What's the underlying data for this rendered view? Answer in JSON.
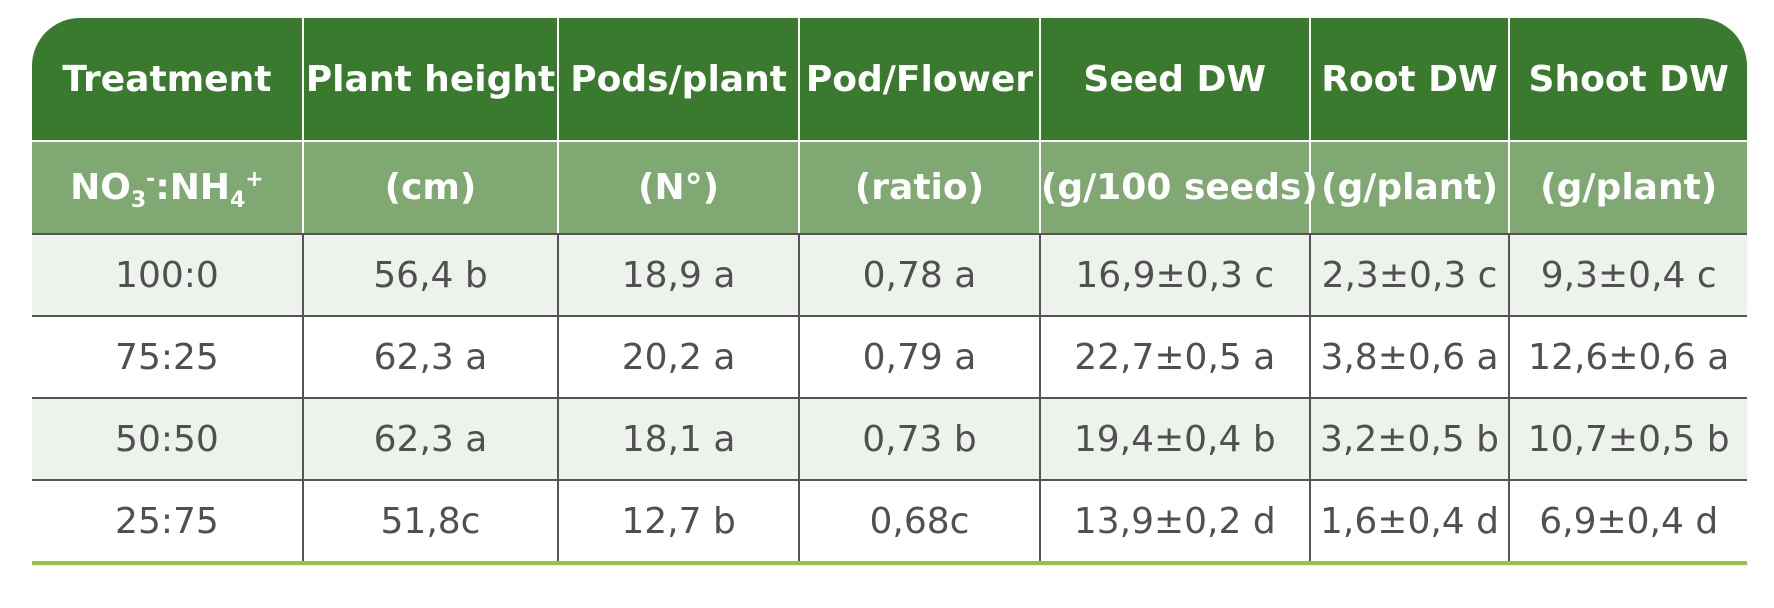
{
  "headers": [
    "Treatment",
    "Plant height",
    "Pods/plant",
    "Pod/Flower",
    "Seed DW",
    "Root DW",
    "Shoot DW"
  ],
  "units": {
    "treatment_prefix": "NO",
    "treatment_sub1": "3",
    "treatment_sup1": "-",
    "treatment_mid": ":NH",
    "treatment_sub2": "4",
    "treatment_sup2": "+",
    "cols": [
      "(cm)",
      "(N°)",
      "(ratio)",
      "(g/100 seeds)",
      "(g/plant)",
      "(g/plant)"
    ]
  },
  "rows": [
    [
      "100:0",
      "56,4 b",
      "18,9 a",
      "0,78 a",
      "16,9±0,3 c",
      "2,3±0,3 c",
      "9,3±0,4 c"
    ],
    [
      "75:25",
      "62,3 a",
      "20,2 a",
      "0,79 a",
      "22,7±0,5 a",
      "3,8±0,6 a",
      "12,6±0,6 a"
    ],
    [
      "50:50",
      "62,3 a",
      "18,1 a",
      "0,73 b",
      "19,4±0,4 b",
      "3,2±0,5 b",
      "10,7±0,5 b"
    ],
    [
      "25:75",
      "51,8c",
      "12,7 b",
      "0,68c",
      "13,9±0,2 d",
      "1,6±0,4 d",
      "6,9±0,4 d"
    ]
  ],
  "colors": {
    "header_bg": "#3a7a2e",
    "units_bg": "#80a872",
    "row_alt_bg": "#edf2ec",
    "bottom_rule": "#8dc63f"
  }
}
